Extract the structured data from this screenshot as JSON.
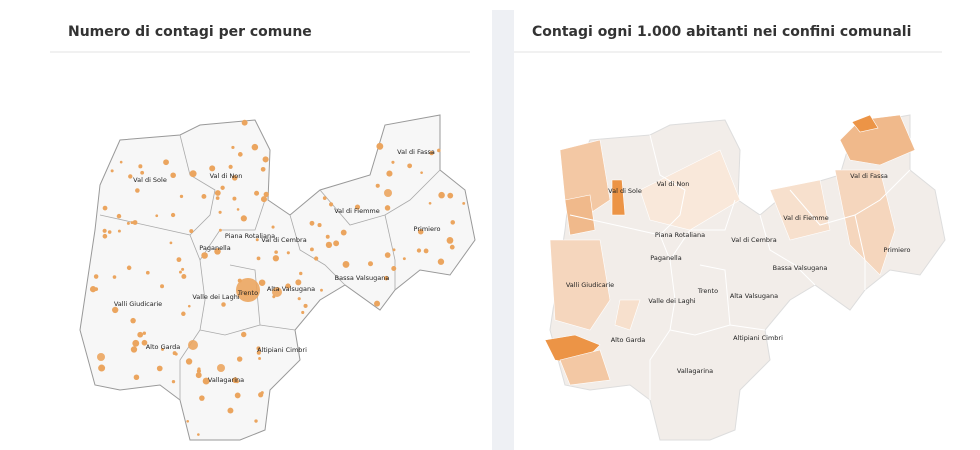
{
  "panels": [
    {
      "title": "Numero di contagi per comune",
      "labels": [
        "Val di Sole",
        "Val di Non",
        "Val di Fassa",
        "Val di Fiemme",
        "Piana Rotaliana",
        "Val di Cembra",
        "Paganella",
        "Primiero",
        "Bassa Valsugana",
        "Valli Giudicarie",
        "Valle dei Laghi",
        "Trento",
        "Alta Valsugana",
        "Alto Garda",
        "Altipiani Cimbri",
        "Vallagarina"
      ]
    },
    {
      "title": "Contagi ogni 1.000 abitanti nei confini comunali",
      "labels": [
        "Val di Sole",
        "Val di Non",
        "Val di Fassa",
        "Val di Fiemme",
        "Piana Rotaliana",
        "Val di Cembra",
        "Paganella",
        "Primiero",
        "Bassa Valsugana",
        "Valli Giudicarie",
        "Valle dei Laghi",
        "Trento",
        "Alta Valsugana",
        "Alto Garda",
        "Altipiani Cimbri",
        "Vallagarina"
      ]
    }
  ]
}
